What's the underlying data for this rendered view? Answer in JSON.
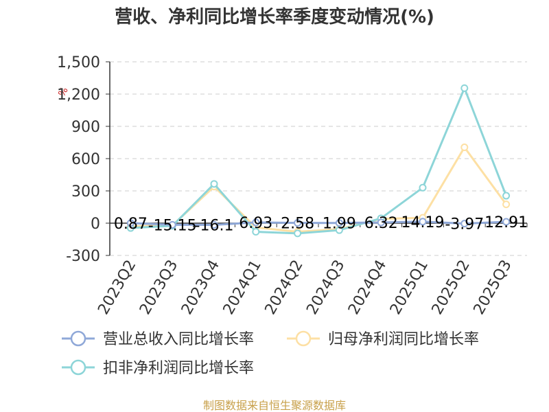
{
  "chart_data": {
    "type": "line",
    "title": "营收、净利同比增长率季度变动情况(%)",
    "unit_label": "%",
    "categories": [
      "2023Q2",
      "2023Q3",
      "2023Q4",
      "2024Q1",
      "2024Q2",
      "2024Q3",
      "2024Q4",
      "2025Q1",
      "2025Q2",
      "2025Q3"
    ],
    "ylim": [
      -300,
      1500
    ],
    "yticks": [
      "-300",
      "0",
      "300",
      "600",
      "900",
      "1,200",
      "1,500"
    ],
    "grid": true,
    "legend_position": "bottom",
    "series": [
      {
        "name": "营业总收入同比增长率",
        "color": "#8fa8d8",
        "values": [
          0.87,
          -15.15,
          -16.1,
          6.93,
          2.58,
          1.99,
          6.32,
          14.19,
          -3.97,
          12.91
        ],
        "labels": [
          "0.87",
          "-15.15",
          "-16.1",
          "6.93",
          "2.58",
          "1.99",
          "6.32",
          "14.19",
          "-3.97",
          "12.91"
        ]
      },
      {
        "name": "归母净利润同比增长率",
        "color": "#fde0a4",
        "values": [
          -30,
          -20,
          340,
          -40,
          -80,
          -55,
          40,
          50,
          705,
          175
        ]
      },
      {
        "name": "扣非净利润同比增长率",
        "color": "#8dd5d8",
        "values": [
          -45,
          -25,
          365,
          -80,
          -95,
          -65,
          45,
          330,
          1255,
          255
        ]
      }
    ],
    "source": "制图数据来自恒生聚源数据库"
  }
}
